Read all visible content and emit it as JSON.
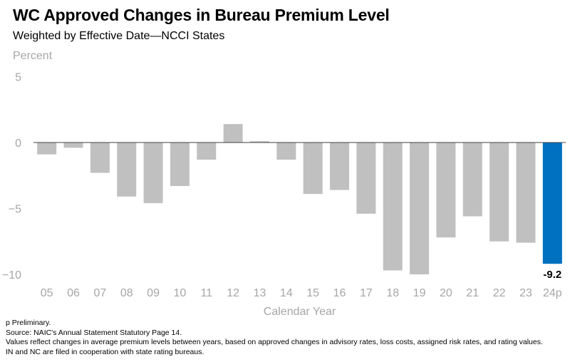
{
  "header": {
    "title": "WC Approved Changes in Bureau Premium Level",
    "subtitle": "Weighted by Effective Date—NCCI States"
  },
  "chart_data": {
    "type": "bar",
    "title": "WC Approved Changes in Bureau Premium Level",
    "subtitle": "Weighted by Effective Date—NCCI States",
    "ylabel": "Percent",
    "xlabel": "Calendar Year",
    "categories": [
      "05",
      "06",
      "07",
      "08",
      "09",
      "10",
      "11",
      "12",
      "13",
      "14",
      "15",
      "16",
      "17",
      "18",
      "19",
      "20",
      "21",
      "22",
      "23",
      "24p"
    ],
    "values": [
      -0.9,
      -0.4,
      -2.3,
      -4.1,
      -4.6,
      -3.3,
      -1.3,
      1.4,
      0.1,
      -1.3,
      -3.9,
      -3.6,
      -5.4,
      -9.7,
      -10.0,
      -7.2,
      -5.6,
      -7.5,
      -7.6,
      -9.2
    ],
    "yticks": [
      5,
      0,
      -5,
      -10
    ],
    "ytick_labels": [
      "5",
      "0",
      "−5",
      "−10"
    ],
    "ylim": [
      -10.5,
      5
    ],
    "grid": false,
    "colors": {
      "default": "#c0c0c0",
      "highlight": "#0070c0",
      "axis_text": "#a6a6a6",
      "zero_line": "#404040"
    },
    "highlight_index": 19,
    "data_labels": [
      {
        "category": "24p",
        "text": "-9.2"
      }
    ]
  },
  "footnotes": [
    "p Preliminary.",
    "Source: NAIC's Annual Statement Statutory Page 14.",
    "Values reflect changes in average premium levels between years, based on approved changes in advisory rates, loss costs, assigned risk rates, and rating values.",
    "IN and NC are filed in cooperation with state rating bureaus."
  ]
}
